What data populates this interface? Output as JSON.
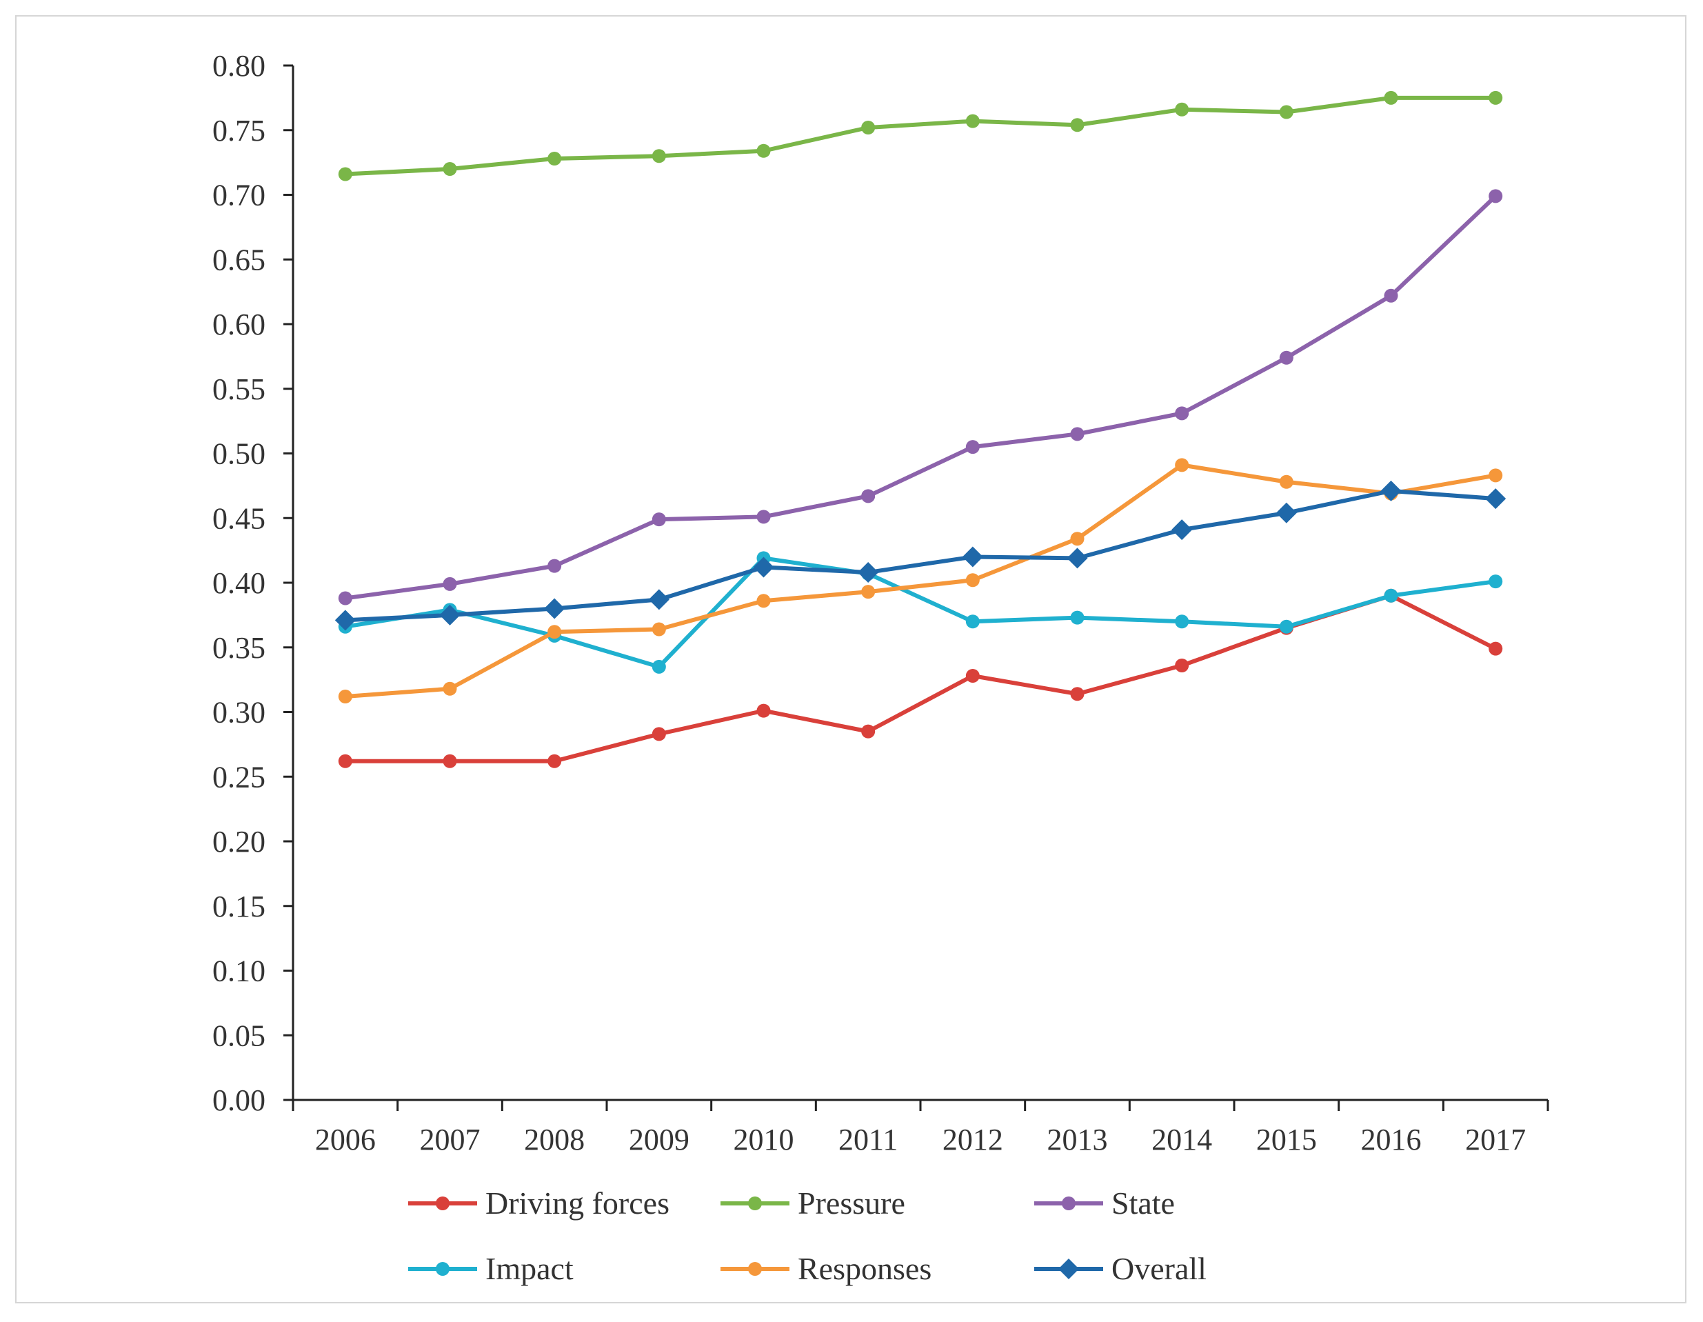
{
  "chart_data": {
    "type": "line",
    "categories": [
      "2006",
      "2007",
      "2008",
      "2009",
      "2010",
      "2011",
      "2012",
      "2013",
      "2014",
      "2015",
      "2016",
      "2017"
    ],
    "ylim": [
      0,
      0.8
    ],
    "yticks": [
      "0.00",
      "0.05",
      "0.10",
      "0.15",
      "0.20",
      "0.25",
      "0.30",
      "0.35",
      "0.40",
      "0.45",
      "0.50",
      "0.55",
      "0.60",
      "0.65",
      "0.70",
      "0.75",
      "0.80"
    ],
    "legend_position": "bottom",
    "grid": false,
    "series": [
      {
        "name": "Driving forces",
        "color": "#d9403a",
        "marker": "circle",
        "values": [
          0.262,
          0.262,
          0.262,
          0.283,
          0.301,
          0.285,
          0.328,
          0.314,
          0.336,
          0.365,
          0.39,
          0.349
        ]
      },
      {
        "name": "Pressure",
        "color": "#7ab648",
        "marker": "circle",
        "values": [
          0.716,
          0.72,
          0.728,
          0.73,
          0.734,
          0.752,
          0.757,
          0.754,
          0.766,
          0.764,
          0.775,
          0.775
        ]
      },
      {
        "name": "State",
        "color": "#8c62ab",
        "marker": "circle",
        "values": [
          0.388,
          0.399,
          0.413,
          0.449,
          0.451,
          0.467,
          0.505,
          0.515,
          0.531,
          0.574,
          0.622,
          0.699
        ]
      },
      {
        "name": "Impact",
        "color": "#1fb0cf",
        "marker": "circle",
        "values": [
          0.366,
          0.379,
          0.359,
          0.335,
          0.419,
          0.407,
          0.37,
          0.373,
          0.37,
          0.366,
          0.39,
          0.401
        ]
      },
      {
        "name": "Responses",
        "color": "#f5973a",
        "marker": "circle",
        "values": [
          0.312,
          0.318,
          0.362,
          0.364,
          0.386,
          0.393,
          0.402,
          0.434,
          0.491,
          0.478,
          0.469,
          0.483
        ]
      },
      {
        "name": "Overall",
        "color": "#1f68a9",
        "marker": "diamond",
        "values": [
          0.371,
          0.375,
          0.38,
          0.387,
          0.412,
          0.408,
          0.42,
          0.419,
          0.441,
          0.454,
          0.471,
          0.465
        ]
      }
    ]
  }
}
